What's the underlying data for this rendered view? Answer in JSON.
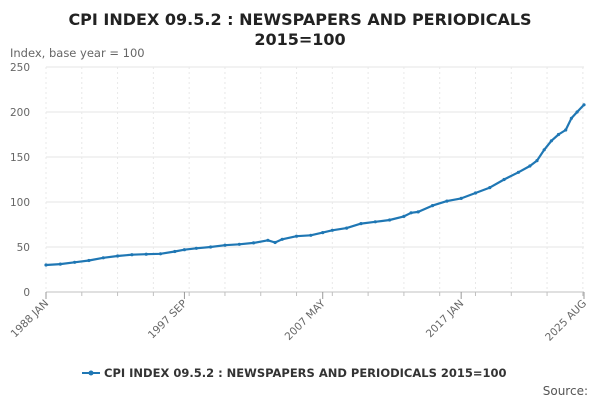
{
  "chart_data": {
    "type": "line",
    "title_lines": [
      "CPI INDEX 09.5.2 : NEWSPAPERS AND PERIODICALS",
      "2015=100"
    ],
    "ylabel": "Index, base year = 100",
    "ylim": [
      0,
      250
    ],
    "yticks": [
      0,
      50,
      100,
      150,
      200,
      250
    ],
    "xlim": [
      1988.0,
      2025.58
    ],
    "xticks": [
      {
        "label": "1988 JAN",
        "x": 1988.0
      },
      {
        "label": "1997 SEP",
        "x": 1997.67
      },
      {
        "label": "2007 MAY",
        "x": 2007.33
      },
      {
        "label": "2017 JAN",
        "x": 2017.0
      },
      {
        "label": "2025 AUG",
        "x": 2025.58
      }
    ],
    "grid": true,
    "legend_position": "bottom-center",
    "color": "#1f77b4",
    "series": [
      {
        "name": "CPI INDEX 09.5.2 : NEWSPAPERS AND PERIODICALS 2015=100",
        "points": [
          [
            1988.0,
            30
          ],
          [
            1989.0,
            31
          ],
          [
            1990.0,
            33
          ],
          [
            1991.0,
            35
          ],
          [
            1992.0,
            38
          ],
          [
            1993.0,
            40
          ],
          [
            1994.0,
            41.5
          ],
          [
            1995.0,
            42
          ],
          [
            1996.0,
            42.5
          ],
          [
            1997.0,
            45
          ],
          [
            1997.67,
            47
          ],
          [
            1998.5,
            48.5
          ],
          [
            1999.5,
            50
          ],
          [
            2000.5,
            52
          ],
          [
            2001.5,
            53
          ],
          [
            2002.5,
            54.5
          ],
          [
            2003.5,
            57.5
          ],
          [
            2004.0,
            55
          ],
          [
            2004.5,
            58.5
          ],
          [
            2005.5,
            62
          ],
          [
            2006.5,
            63
          ],
          [
            2007.33,
            66
          ],
          [
            2008.0,
            68.5
          ],
          [
            2009.0,
            71
          ],
          [
            2010.0,
            76
          ],
          [
            2011.0,
            78
          ],
          [
            2012.0,
            80
          ],
          [
            2013.0,
            84
          ],
          [
            2013.5,
            88
          ],
          [
            2014.0,
            89
          ],
          [
            2015.0,
            96
          ],
          [
            2016.0,
            101
          ],
          [
            2017.0,
            104
          ],
          [
            2018.0,
            110
          ],
          [
            2019.0,
            116
          ],
          [
            2020.0,
            125
          ],
          [
            2021.0,
            133
          ],
          [
            2021.8,
            140
          ],
          [
            2022.3,
            146
          ],
          [
            2022.8,
            158
          ],
          [
            2023.3,
            168
          ],
          [
            2023.8,
            175
          ],
          [
            2024.3,
            180
          ],
          [
            2024.7,
            193
          ],
          [
            2025.1,
            200
          ],
          [
            2025.58,
            208
          ]
        ]
      }
    ]
  },
  "source_label": "Source:"
}
